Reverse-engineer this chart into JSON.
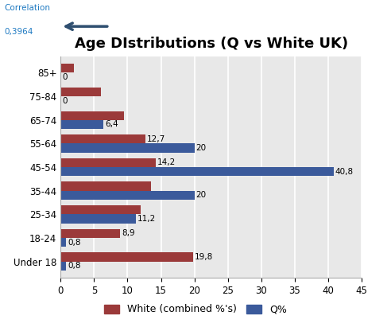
{
  "title": "Age DIstributions (Q vs White UK)",
  "categories": [
    "Under 18",
    "18-24",
    "25-34",
    "35-44",
    "45-54",
    "55-64",
    "65-74",
    "75-84",
    "85+"
  ],
  "white_values": [
    19.8,
    8.9,
    12.0,
    13.5,
    14.2,
    12.7,
    9.5,
    6.0,
    2.0
  ],
  "q_values": [
    0.8,
    0.8,
    11.2,
    20,
    40.8,
    20,
    6.4,
    0,
    0
  ],
  "white_labels": [
    "19,8",
    "8,9",
    "",
    "",
    "14,2",
    "12,7",
    "",
    "",
    ""
  ],
  "q_labels": [
    "0,8",
    "0,8",
    "11,2",
    "20",
    "40,8",
    "20",
    "6,4",
    "0",
    "0"
  ],
  "white_color": "#9B3A3A",
  "q_color": "#3B5A9B",
  "xlim": [
    0,
    45
  ],
  "xticks": [
    0,
    5,
    10,
    15,
    20,
    25,
    30,
    35,
    40,
    45
  ],
  "legend_white": "White (combined %'s)",
  "legend_q": "Q%",
  "background_color": "#E8E8E8",
  "grid_color": "#FFFFFF",
  "bar_height": 0.38,
  "title_fontsize": 13,
  "tick_fontsize": 8.5,
  "label_fontsize": 7.5,
  "corr_label": "Correlation",
  "corr_value": "0,3964"
}
